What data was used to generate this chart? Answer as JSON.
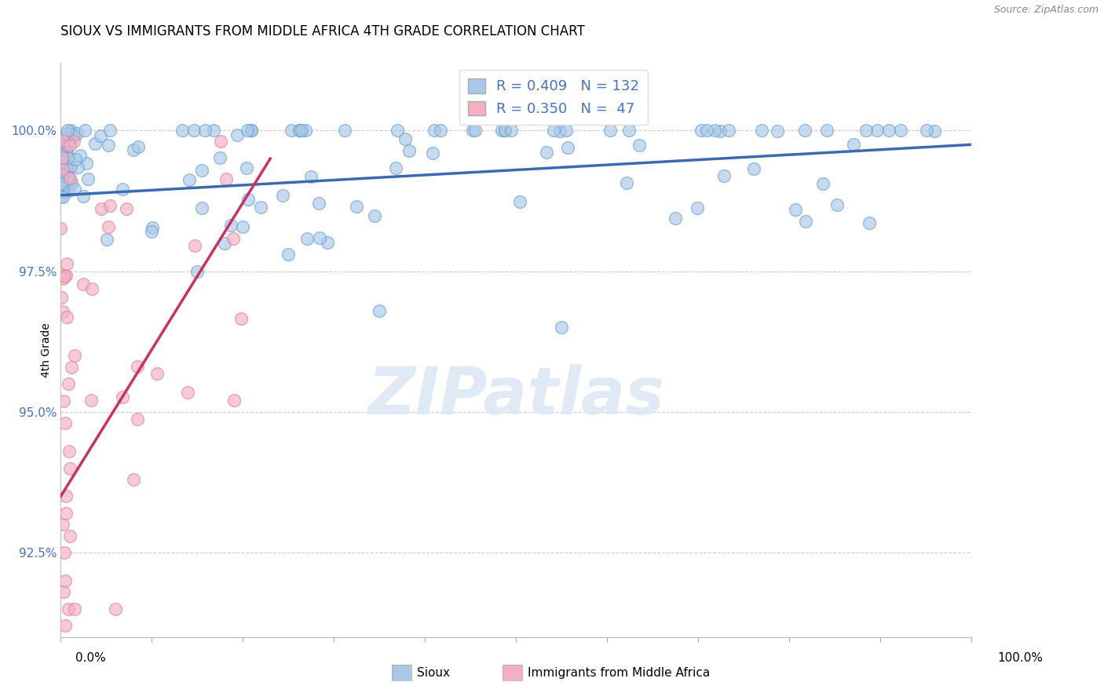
{
  "title": "SIOUX VS IMMIGRANTS FROM MIDDLE AFRICA 4TH GRADE CORRELATION CHART",
  "source_text": "Source: ZipAtlas.com",
  "ylabel": "4th Grade",
  "xmin": 0.0,
  "xmax": 100.0,
  "ymin": 91.0,
  "ymax": 101.2,
  "yticks": [
    100.0,
    97.5,
    95.0,
    92.5
  ],
  "ytick_labels": [
    "100.0%",
    "97.5%",
    "95.0%",
    "92.5%"
  ],
  "sioux_color": "#a8c8e8",
  "sioux_edge_color": "#6aa0cc",
  "immigrants_color": "#f4b0c0",
  "immigrants_edge_color": "#e080a0",
  "sioux_line_color": "#3a6ab0",
  "immigrants_line_color": "#cc3060",
  "sioux_R": 0.409,
  "sioux_N": 132,
  "immigrants_R": 0.35,
  "immigrants_N": 47,
  "watermark": "ZIPatlas",
  "sioux_line_x0": 0.0,
  "sioux_line_y0": 98.85,
  "sioux_line_x1": 100.0,
  "sioux_line_y1": 99.75,
  "imm_line_x0": 0.0,
  "imm_line_y0": 93.5,
  "imm_line_x1": 23.0,
  "imm_line_y1": 99.5
}
